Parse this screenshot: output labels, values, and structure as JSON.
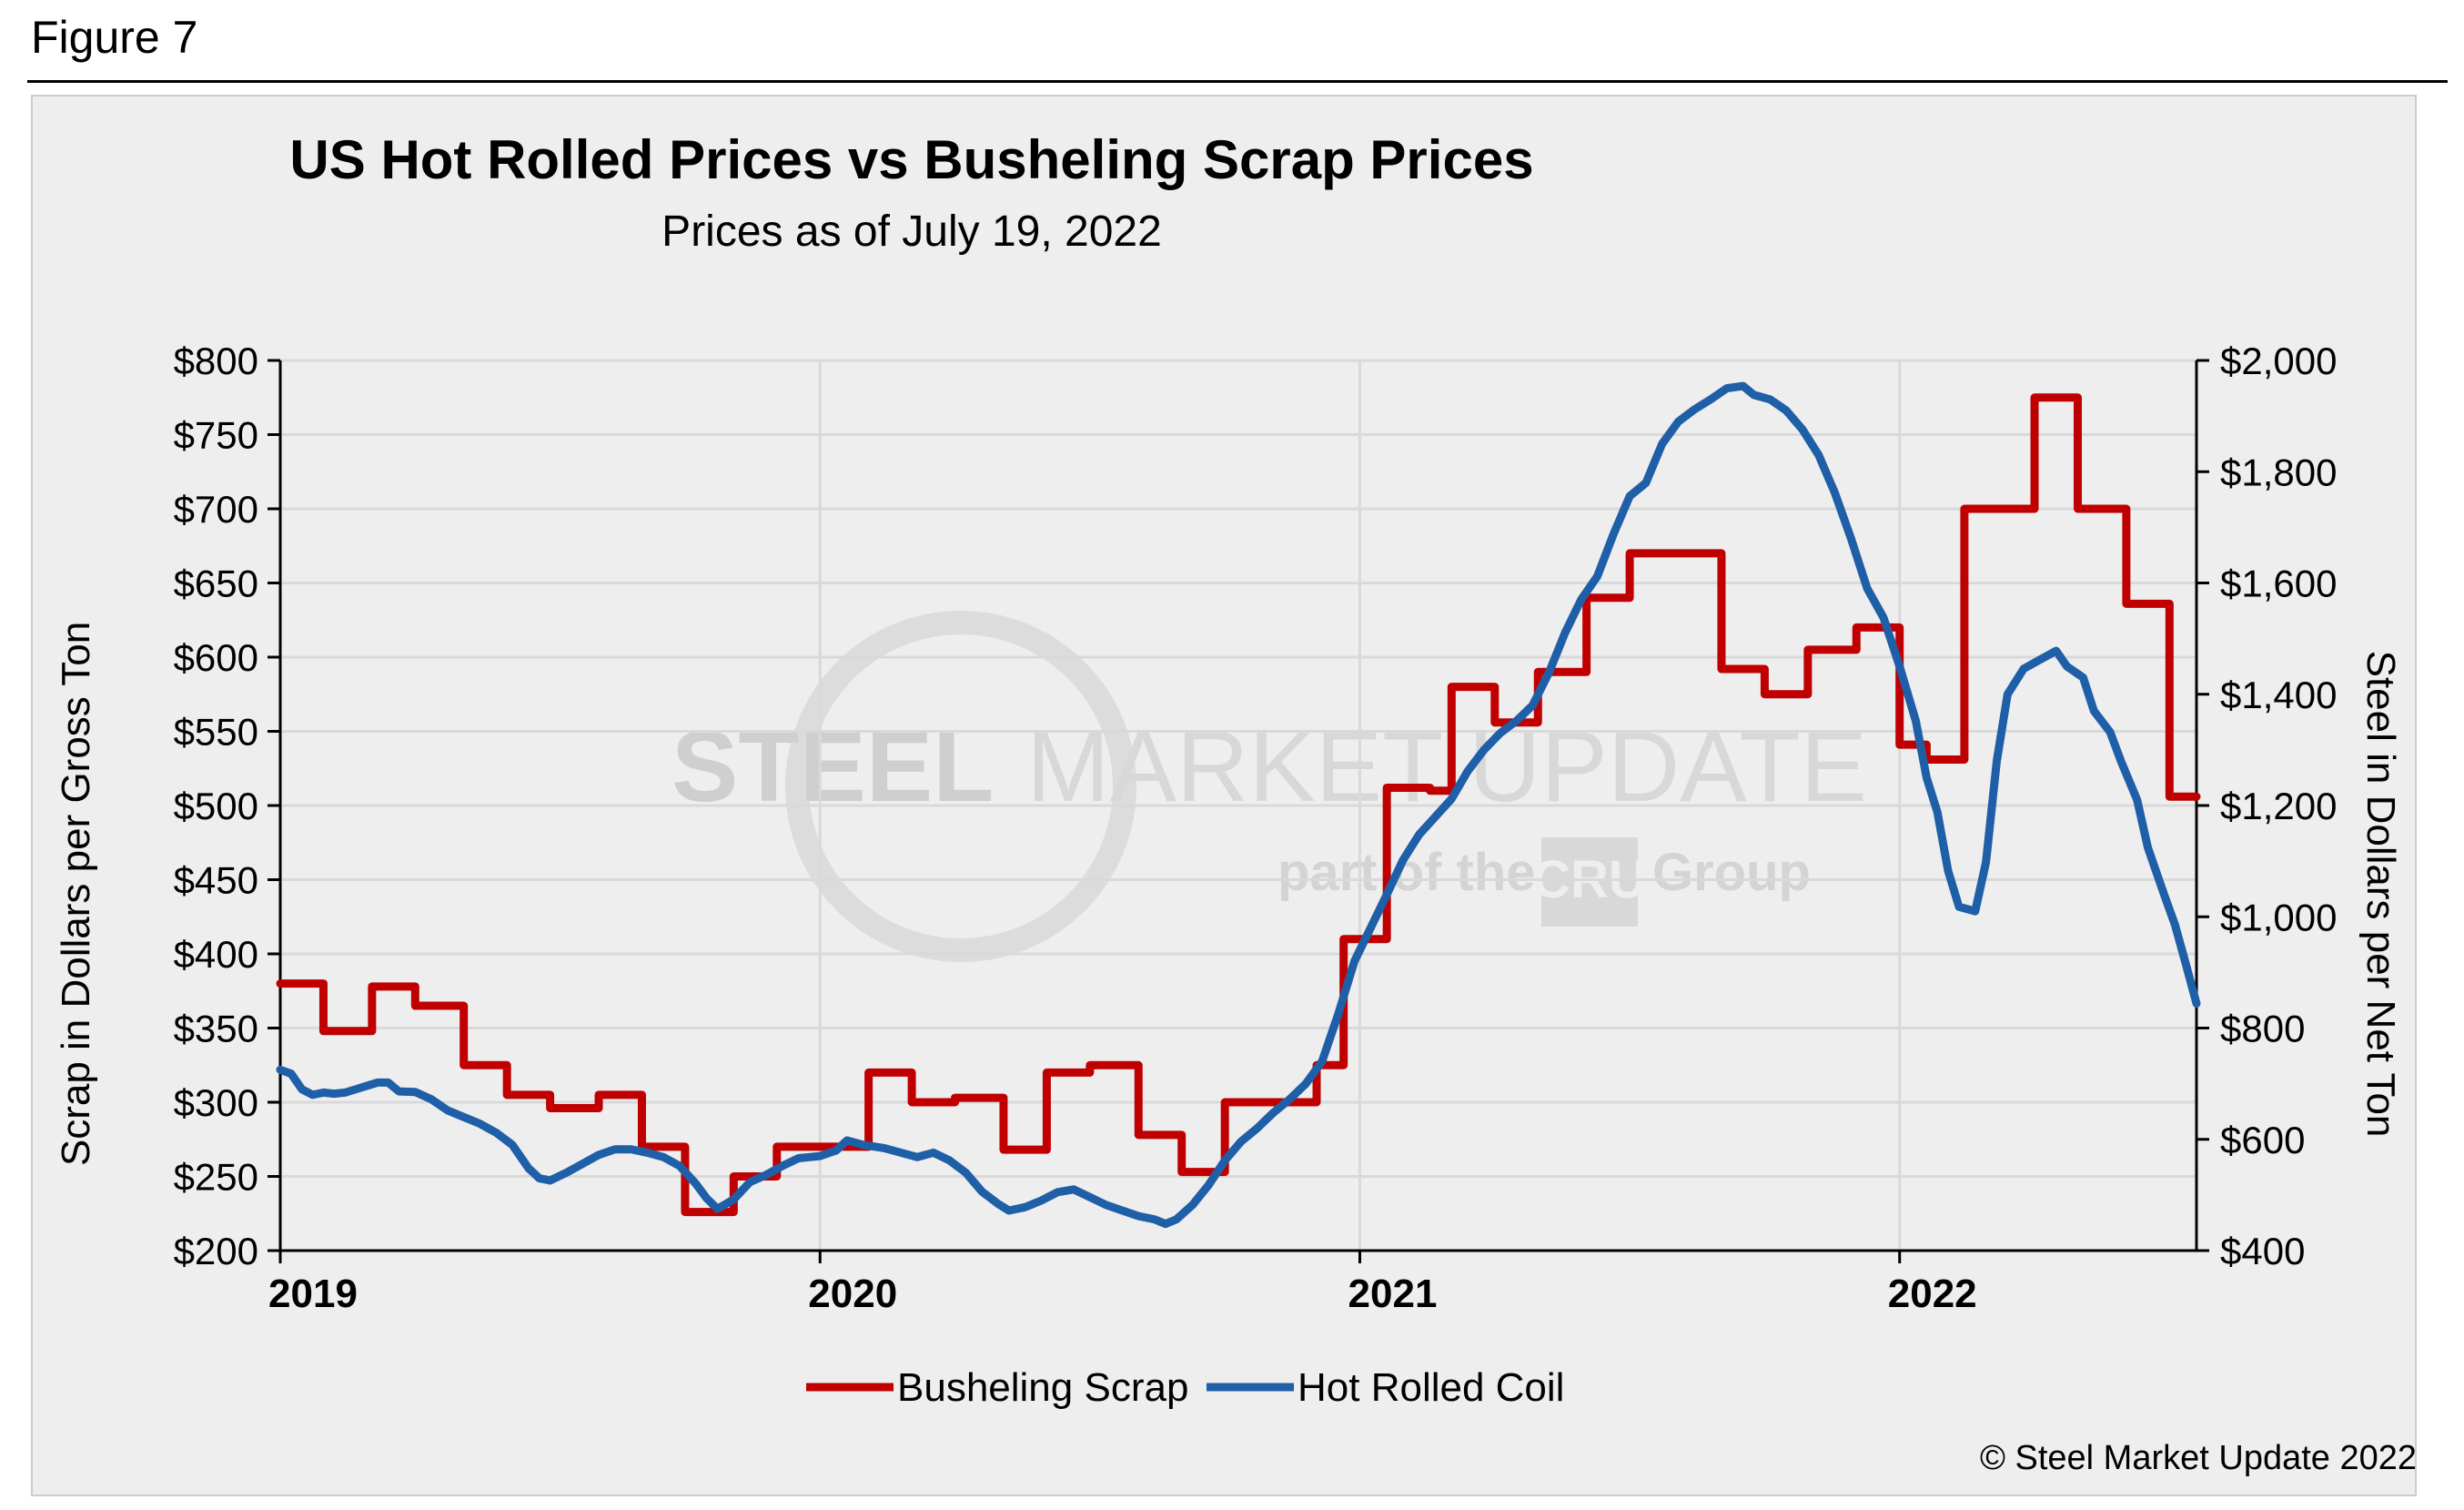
{
  "figure_label": "Figure 7",
  "copyright": "© Steel Market Update 2022",
  "watermark": {
    "brand_bold": "STEEL",
    "brand_mid": "MARKET",
    "brand_thin": "UPDATE",
    "sub_left": "part of the",
    "sub_logo": "CRU",
    "sub_right": "Group"
  },
  "colors": {
    "scrap": "#c00000",
    "hrc": "#1f5fa8",
    "grid": "#d9d9d9",
    "background": "#eeeeee"
  },
  "chart_data": {
    "type": "line",
    "title": "US Hot Rolled Prices vs Busheling Scrap Prices",
    "subtitle": "Prices as of July 19, 2022",
    "ylabel_left": "Scrap in Dollars per Gross Ton",
    "ylabel_right": "Steel in Dollars per Net Ton",
    "x_ticks": [
      "2019",
      "2020",
      "2021",
      "2022"
    ],
    "x_range": [
      2019.0,
      2022.55
    ],
    "y_left": {
      "range": [
        200,
        800
      ],
      "ticks": [
        "$200",
        "$250",
        "$300",
        "$350",
        "$400",
        "$450",
        "$500",
        "$550",
        "$600",
        "$650",
        "$700",
        "$750",
        "$800"
      ]
    },
    "y_right": {
      "range": [
        400,
        2000
      ],
      "ticks": [
        "$400",
        "$600",
        "$800",
        "$1,000",
        "$1,200",
        "$1,400",
        "$1,600",
        "$1,800",
        "$2,000"
      ]
    },
    "legend_position": "bottom",
    "series": [
      {
        "name": "Busheling Scrap",
        "axis": "left",
        "step": true,
        "points": [
          [
            2019.0,
            380
          ],
          [
            2019.08,
            348
          ],
          [
            2019.17,
            378
          ],
          [
            2019.25,
            365
          ],
          [
            2019.34,
            325
          ],
          [
            2019.42,
            305
          ],
          [
            2019.5,
            296
          ],
          [
            2019.59,
            305
          ],
          [
            2019.67,
            270
          ],
          [
            2019.75,
            226
          ],
          [
            2019.84,
            250
          ],
          [
            2019.92,
            270
          ],
          [
            2020.0,
            270
          ],
          [
            2020.01,
            270
          ],
          [
            2020.09,
            320
          ],
          [
            2020.17,
            300
          ],
          [
            2020.25,
            303
          ],
          [
            2020.34,
            268
          ],
          [
            2020.42,
            320
          ],
          [
            2020.5,
            325
          ],
          [
            2020.59,
            278
          ],
          [
            2020.67,
            253
          ],
          [
            2020.75,
            300
          ],
          [
            2020.84,
            300
          ],
          [
            2020.92,
            325
          ],
          [
            2020.97,
            410
          ],
          [
            2021.01,
            410
          ],
          [
            2021.05,
            512
          ],
          [
            2021.13,
            510
          ],
          [
            2021.17,
            580
          ],
          [
            2021.25,
            556
          ],
          [
            2021.33,
            590
          ],
          [
            2021.42,
            640
          ],
          [
            2021.5,
            670
          ],
          [
            2021.67,
            592
          ],
          [
            2021.75,
            575
          ],
          [
            2021.83,
            605
          ],
          [
            2021.92,
            620
          ],
          [
            2022.0,
            541
          ],
          [
            2022.05,
            531
          ],
          [
            2022.12,
            700
          ],
          [
            2022.25,
            775
          ],
          [
            2022.33,
            700
          ],
          [
            2022.42,
            636
          ],
          [
            2022.5,
            506
          ],
          [
            2022.55,
            506
          ]
        ]
      },
      {
        "name": "Hot Rolled Coil",
        "axis": "right",
        "step": false,
        "points": [
          [
            2019.0,
            725
          ],
          [
            2019.02,
            718
          ],
          [
            2019.04,
            690
          ],
          [
            2019.06,
            680
          ],
          [
            2019.08,
            684
          ],
          [
            2019.1,
            682
          ],
          [
            2019.12,
            684
          ],
          [
            2019.14,
            690
          ],
          [
            2019.16,
            696
          ],
          [
            2019.18,
            702
          ],
          [
            2019.2,
            702
          ],
          [
            2019.22,
            686
          ],
          [
            2019.25,
            685
          ],
          [
            2019.28,
            672
          ],
          [
            2019.31,
            652
          ],
          [
            2019.34,
            640
          ],
          [
            2019.37,
            628
          ],
          [
            2019.4,
            612
          ],
          [
            2019.43,
            590
          ],
          [
            2019.46,
            548
          ],
          [
            2019.48,
            530
          ],
          [
            2019.5,
            526
          ],
          [
            2019.53,
            540
          ],
          [
            2019.56,
            556
          ],
          [
            2019.59,
            572
          ],
          [
            2019.62,
            582
          ],
          [
            2019.65,
            582
          ],
          [
            2019.68,
            576
          ],
          [
            2019.71,
            568
          ],
          [
            2019.74,
            552
          ],
          [
            2019.77,
            520
          ],
          [
            2019.79,
            494
          ],
          [
            2019.81,
            475
          ],
          [
            2019.84,
            492
          ],
          [
            2019.87,
            523
          ],
          [
            2019.9,
            536
          ],
          [
            2019.93,
            552
          ],
          [
            2019.96,
            566
          ],
          [
            2020.0,
            570
          ],
          [
            2020.03,
            580
          ],
          [
            2020.05,
            598
          ],
          [
            2020.08,
            590
          ],
          [
            2020.12,
            584
          ],
          [
            2020.15,
            576
          ],
          [
            2020.18,
            568
          ],
          [
            2020.21,
            576
          ],
          [
            2020.24,
            562
          ],
          [
            2020.27,
            540
          ],
          [
            2020.3,
            506
          ],
          [
            2020.33,
            484
          ],
          [
            2020.35,
            472
          ],
          [
            2020.38,
            478
          ],
          [
            2020.41,
            490
          ],
          [
            2020.44,
            505
          ],
          [
            2020.47,
            510
          ],
          [
            2020.5,
            496
          ],
          [
            2020.53,
            482
          ],
          [
            2020.56,
            472
          ],
          [
            2020.59,
            462
          ],
          [
            2020.62,
            456
          ],
          [
            2020.64,
            448
          ],
          [
            2020.66,
            456
          ],
          [
            2020.69,
            482
          ],
          [
            2020.72,
            518
          ],
          [
            2020.75,
            562
          ],
          [
            2020.78,
            596
          ],
          [
            2020.81,
            620
          ],
          [
            2020.84,
            648
          ],
          [
            2020.87,
            672
          ],
          [
            2020.9,
            700
          ],
          [
            2020.93,
            740
          ],
          [
            2020.96,
            825
          ],
          [
            2020.99,
            920
          ],
          [
            2021.02,
            980
          ],
          [
            2021.05,
            1040
          ],
          [
            2021.08,
            1102
          ],
          [
            2021.11,
            1148
          ],
          [
            2021.14,
            1180
          ],
          [
            2021.17,
            1212
          ],
          [
            2021.2,
            1262
          ],
          [
            2021.23,
            1300
          ],
          [
            2021.26,
            1330
          ],
          [
            2021.29,
            1352
          ],
          [
            2021.32,
            1380
          ],
          [
            2021.35,
            1438
          ],
          [
            2021.38,
            1510
          ],
          [
            2021.41,
            1570
          ],
          [
            2021.44,
            1612
          ],
          [
            2021.47,
            1688
          ],
          [
            2021.5,
            1756
          ],
          [
            2021.53,
            1780
          ],
          [
            2021.56,
            1850
          ],
          [
            2021.59,
            1890
          ],
          [
            2021.62,
            1912
          ],
          [
            2021.65,
            1930
          ],
          [
            2021.68,
            1950
          ],
          [
            2021.71,
            1954
          ],
          [
            2021.73,
            1938
          ],
          [
            2021.76,
            1930
          ],
          [
            2021.79,
            1910
          ],
          [
            2021.82,
            1876
          ],
          [
            2021.85,
            1830
          ],
          [
            2021.88,
            1762
          ],
          [
            2021.91,
            1680
          ],
          [
            2021.94,
            1590
          ],
          [
            2021.97,
            1538
          ],
          [
            2022.0,
            1450
          ],
          [
            2022.03,
            1352
          ],
          [
            2022.05,
            1250
          ],
          [
            2022.07,
            1188
          ],
          [
            2022.09,
            1082
          ],
          [
            2022.11,
            1018
          ],
          [
            2022.14,
            1010
          ],
          [
            2022.16,
            1098
          ],
          [
            2022.18,
            1280
          ],
          [
            2022.2,
            1400
          ],
          [
            2022.23,
            1446
          ],
          [
            2022.26,
            1462
          ],
          [
            2022.29,
            1478
          ],
          [
            2022.31,
            1450
          ],
          [
            2022.34,
            1430
          ],
          [
            2022.36,
            1370
          ],
          [
            2022.39,
            1332
          ],
          [
            2022.41,
            1280
          ],
          [
            2022.44,
            1210
          ],
          [
            2022.46,
            1124
          ],
          [
            2022.49,
            1040
          ],
          [
            2022.51,
            986
          ],
          [
            2022.53,
            916
          ],
          [
            2022.55,
            844
          ]
        ]
      }
    ]
  }
}
